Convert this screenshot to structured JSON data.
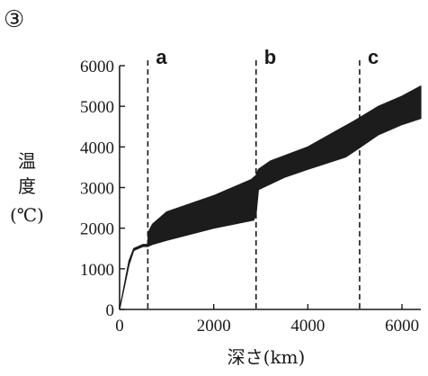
{
  "chart_data": {
    "type": "area",
    "panel_marker": "③",
    "xlabel": "深さ(km)",
    "ylabel_lines": [
      "温",
      "度",
      "(℃)"
    ],
    "xlim": [
      0,
      6400
    ],
    "ylim": [
      0,
      6000
    ],
    "xticks": [
      0,
      2000,
      4000,
      6000
    ],
    "yticks": [
      0,
      1000,
      2000,
      3000,
      4000,
      5000,
      6000
    ],
    "boundaries": [
      {
        "label": "a",
        "x": 600
      },
      {
        "label": "b",
        "x": 2900
      },
      {
        "label": "c",
        "x": 5100
      }
    ],
    "series": [
      {
        "upper": [
          [
            0,
            0
          ],
          [
            200,
            1200
          ],
          [
            300,
            1500
          ],
          [
            500,
            1600
          ],
          [
            600,
            1600
          ],
          [
            610,
            1900
          ],
          [
            700,
            2100
          ],
          [
            1000,
            2400
          ],
          [
            2000,
            2800
          ],
          [
            2800,
            3200
          ],
          [
            2900,
            3300
          ],
          [
            2950,
            3450
          ],
          [
            3200,
            3650
          ],
          [
            4000,
            4000
          ],
          [
            5000,
            4650
          ],
          [
            5500,
            5000
          ],
          [
            6000,
            5250
          ],
          [
            6400,
            5500
          ]
        ],
        "lower": [
          [
            0,
            0
          ],
          [
            200,
            1100
          ],
          [
            300,
            1450
          ],
          [
            500,
            1550
          ],
          [
            600,
            1550
          ],
          [
            700,
            1600
          ],
          [
            1000,
            1700
          ],
          [
            2000,
            2000
          ],
          [
            2850,
            2200
          ],
          [
            2900,
            2350
          ],
          [
            2950,
            2950
          ],
          [
            3500,
            3250
          ],
          [
            4000,
            3450
          ],
          [
            4800,
            3750
          ],
          [
            5000,
            3900
          ],
          [
            5500,
            4300
          ],
          [
            6000,
            4550
          ],
          [
            6400,
            4700
          ]
        ]
      }
    ]
  }
}
